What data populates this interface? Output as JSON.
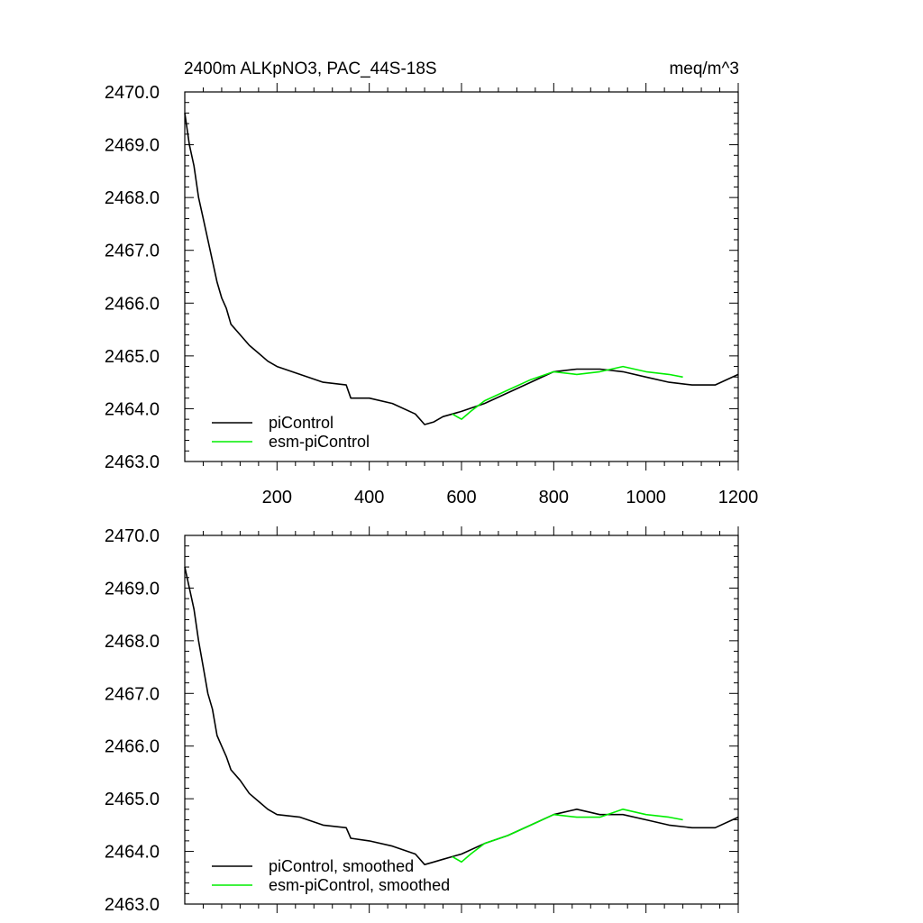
{
  "chart_data": [
    {
      "type": "line",
      "title_left": "2400m ALKpNO3, PAC_44S-18S",
      "title_right": "meq/m^3",
      "xlim": [
        0,
        1200
      ],
      "ylim": [
        2463.0,
        2470.0
      ],
      "x_ticks": [
        "200",
        "400",
        "600",
        "800",
        "1000",
        "1200"
      ],
      "y_ticks": [
        "2463.0",
        "2464.0",
        "2465.0",
        "2466.0",
        "2467.0",
        "2468.0",
        "2469.0",
        "2470.0"
      ],
      "show_x_tick_labels": true,
      "legend_position": "bottom-left",
      "series": [
        {
          "name": "piControl",
          "color": "#000000",
          "x": [
            0,
            10,
            20,
            30,
            40,
            50,
            60,
            70,
            80,
            90,
            100,
            120,
            140,
            160,
            180,
            200,
            250,
            300,
            350,
            360,
            400,
            450,
            500,
            520,
            540,
            560,
            580,
            600,
            650,
            700,
            750,
            800,
            850,
            900,
            950,
            1000,
            1050,
            1100,
            1150,
            1200
          ],
          "y": [
            2469.6,
            2469.0,
            2468.6,
            2468.0,
            2467.6,
            2467.2,
            2466.8,
            2466.4,
            2466.1,
            2465.9,
            2465.6,
            2465.4,
            2465.2,
            2465.05,
            2464.9,
            2464.8,
            2464.65,
            2464.5,
            2464.45,
            2464.2,
            2464.2,
            2464.1,
            2463.9,
            2463.7,
            2463.75,
            2463.85,
            2463.9,
            2463.95,
            2464.1,
            2464.3,
            2464.5,
            2464.7,
            2464.75,
            2464.75,
            2464.7,
            2464.6,
            2464.5,
            2464.45,
            2464.45,
            2464.65
          ]
        },
        {
          "name": "esm-piControl",
          "color": "#00ee00",
          "x": [
            580,
            600,
            620,
            650,
            700,
            750,
            800,
            850,
            900,
            950,
            1000,
            1050,
            1080
          ],
          "y": [
            2463.9,
            2463.8,
            2463.95,
            2464.15,
            2464.35,
            2464.55,
            2464.7,
            2464.65,
            2464.7,
            2464.8,
            2464.7,
            2464.65,
            2464.6
          ]
        }
      ]
    },
    {
      "type": "line",
      "xlim": [
        0,
        1200
      ],
      "ylim": [
        2463.0,
        2470.0
      ],
      "y_ticks": [
        "2463.0",
        "2464.0",
        "2465.0",
        "2466.0",
        "2467.0",
        "2468.0",
        "2469.0",
        "2470.0"
      ],
      "show_x_tick_labels": false,
      "legend_position": "bottom-left",
      "series": [
        {
          "name": "piControl, smoothed",
          "color": "#000000",
          "x": [
            0,
            10,
            20,
            30,
            40,
            50,
            60,
            70,
            80,
            90,
            100,
            120,
            140,
            160,
            180,
            200,
            250,
            300,
            350,
            360,
            400,
            450,
            500,
            520,
            540,
            560,
            580,
            600,
            650,
            700,
            750,
            800,
            850,
            900,
            950,
            1000,
            1050,
            1100,
            1150,
            1200
          ],
          "y": [
            2469.4,
            2469.0,
            2468.6,
            2468.0,
            2467.5,
            2467.0,
            2466.7,
            2466.2,
            2466.0,
            2465.8,
            2465.55,
            2465.35,
            2465.1,
            2464.95,
            2464.8,
            2464.7,
            2464.65,
            2464.5,
            2464.45,
            2464.25,
            2464.2,
            2464.1,
            2463.95,
            2463.75,
            2463.8,
            2463.85,
            2463.9,
            2463.95,
            2464.15,
            2464.3,
            2464.5,
            2464.7,
            2464.8,
            2464.7,
            2464.7,
            2464.6,
            2464.5,
            2464.45,
            2464.45,
            2464.65
          ]
        },
        {
          "name": "esm-piControl, smoothed",
          "color": "#00ee00",
          "x": [
            580,
            600,
            620,
            650,
            700,
            750,
            800,
            850,
            900,
            950,
            1000,
            1050,
            1080
          ],
          "y": [
            2463.9,
            2463.8,
            2463.95,
            2464.15,
            2464.3,
            2464.5,
            2464.7,
            2464.65,
            2464.65,
            2464.8,
            2464.7,
            2464.65,
            2464.6
          ]
        }
      ]
    }
  ]
}
